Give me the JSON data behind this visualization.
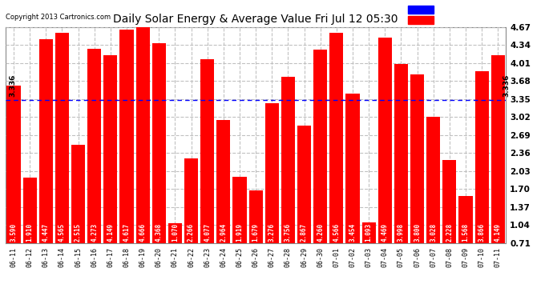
{
  "title": "Daily Solar Energy & Average Value Fri Jul 12 05:30",
  "copyright": "Copyright 2013 Cartronics.com",
  "average": 3.336,
  "bar_color": "#FF0000",
  "average_line_color": "#0000FF",
  "background_color": "#FFFFFF",
  "plot_bg_color": "#FFFFFF",
  "grid_color": "#BBBBBB",
  "categories": [
    "06-11",
    "06-12",
    "06-13",
    "06-14",
    "06-15",
    "06-16",
    "06-17",
    "06-18",
    "06-19",
    "06-20",
    "06-21",
    "06-22",
    "06-23",
    "06-24",
    "06-25",
    "06-26",
    "06-27",
    "06-28",
    "06-29",
    "06-30",
    "07-01",
    "07-02",
    "07-03",
    "07-04",
    "07-05",
    "07-06",
    "07-07",
    "07-08",
    "07-09",
    "07-10",
    "07-11"
  ],
  "values": [
    3.59,
    1.91,
    4.447,
    4.565,
    2.515,
    4.273,
    4.149,
    4.617,
    4.666,
    4.368,
    1.07,
    2.266,
    4.077,
    2.964,
    1.919,
    1.679,
    3.276,
    3.756,
    2.867,
    4.26,
    4.566,
    3.454,
    1.093,
    4.469,
    3.998,
    3.8,
    3.028,
    2.228,
    1.568,
    3.866,
    4.149
  ],
  "ymin": 0.71,
  "ymax": 4.67,
  "yticks": [
    0.71,
    1.04,
    1.37,
    1.7,
    2.03,
    2.36,
    2.69,
    3.02,
    3.35,
    3.68,
    4.01,
    4.34,
    4.67
  ],
  "legend_avg_color": "#0000FF",
  "legend_daily_color": "#FF0000",
  "legend_bg_color": "#000080",
  "legend_text_color": "#FFFFFF",
  "avg_label_fontsize": 6.5,
  "bar_label_fontsize": 5.5,
  "xtick_fontsize": 6.0,
  "ytick_fontsize": 7.5
}
